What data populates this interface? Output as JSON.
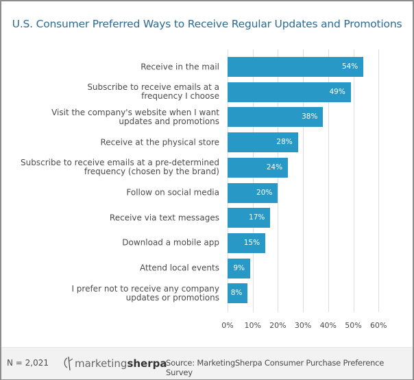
{
  "title": "U.S. Consumer Preferred Ways to Receive Regular Updates and Promotions",
  "chart_data": {
    "type": "bar",
    "orientation": "horizontal",
    "title": "U.S. Consumer Preferred Ways to Receive Regular Updates and Promotions",
    "xlabel": "",
    "ylabel": "",
    "categories": [
      "Receive in the mail",
      "Subscribe to receive emails at a frequency I choose",
      "Visit the company's website when I want updates and promotions",
      "Receive at the physical store",
      "Subscribe to receive emails at a pre-determined frequency (chosen by the brand)",
      "Follow on social media",
      "Receive via text messages",
      "Download a mobile app",
      "Attend local events",
      "I prefer not to receive any company updates or promotions"
    ],
    "values": [
      54,
      49,
      38,
      28,
      24,
      20,
      17,
      15,
      9,
      8
    ],
    "value_labels": [
      "54%",
      "49%",
      "38%",
      "28%",
      "24%",
      "20%",
      "17%",
      "15%",
      "9%",
      "8%"
    ],
    "xlim": [
      0,
      60
    ],
    "x_ticks": [
      "0%",
      "10%",
      "20%",
      "30%",
      "40%",
      "50%",
      "60%"
    ],
    "grid": true,
    "legend": "none",
    "bar_color": "#2899c6"
  },
  "rows": [
    {
      "label_lines": [
        "Receive in the mail"
      ],
      "value": 54,
      "value_label": "54%"
    },
    {
      "label_lines": [
        "Subscribe to receive emails at a",
        "frequency I choose"
      ],
      "value": 49,
      "value_label": "49%"
    },
    {
      "label_lines": [
        "Visit the company's website when I want",
        "updates and promotions"
      ],
      "value": 38,
      "value_label": "38%"
    },
    {
      "label_lines": [
        "Receive at the physical store"
      ],
      "value": 28,
      "value_label": "28%"
    },
    {
      "label_lines": [
        "Subscribe to receive emails at a pre-determined",
        "frequency (chosen by the brand)"
      ],
      "value": 24,
      "value_label": "24%"
    },
    {
      "label_lines": [
        "Follow on social media"
      ],
      "value": 20,
      "value_label": "20%"
    },
    {
      "label_lines": [
        "Receive via text messages"
      ],
      "value": 17,
      "value_label": "17%"
    },
    {
      "label_lines": [
        "Download a mobile app"
      ],
      "value": 15,
      "value_label": "15%"
    },
    {
      "label_lines": [
        "Attend local events"
      ],
      "value": 9,
      "value_label": "9%"
    },
    {
      "label_lines": [
        "I prefer not to receive any company",
        "updates or promotions"
      ],
      "value": 8,
      "value_label": "8%"
    }
  ],
  "footer": {
    "sample_size": "N = 2,021",
    "logo": {
      "part1": "marketing",
      "part2": "sherpa",
      "icon": "sherpa-logo-icon"
    },
    "source": "Source: MarketingSherpa Consumer Purchase Preference Survey"
  },
  "colors": {
    "title": "#2a6b96",
    "bar": "#2899c6",
    "grid": "#dcdcdc",
    "footer_bg": "#f2f2f2",
    "frame": "#8c8c8c"
  }
}
